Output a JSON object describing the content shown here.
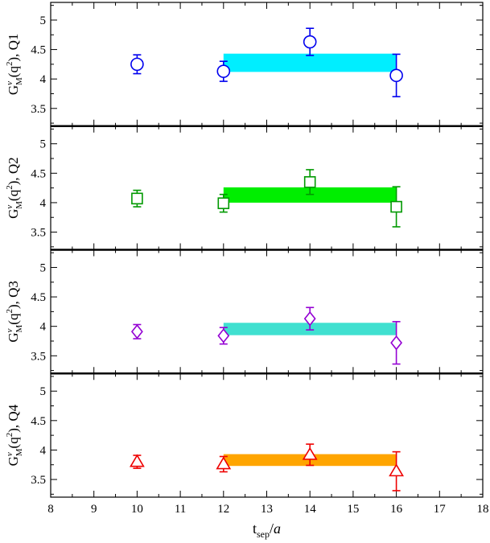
{
  "chart_data": {
    "type": "scatter",
    "x_axis": {
      "label_main": "t",
      "label_sub": "sep",
      "label_tail": "/a",
      "range": [
        8,
        18
      ],
      "ticks": [
        8,
        9,
        10,
        11,
        12,
        13,
        14,
        15,
        16,
        17,
        18
      ]
    },
    "y_range": [
      3.2,
      5.3
    ],
    "y_ticks": [
      3.5,
      4,
      4.5,
      5
    ],
    "y_tick_labels": [
      "3.5",
      "4",
      "4.5",
      "5"
    ],
    "panels": [
      {
        "ylabel": {
          "g": "G",
          "sup": "v",
          "sub": "M",
          "mid": "(q",
          "sq": "2",
          "tail": "), Q1"
        },
        "marker": "circle",
        "color": "#0000ee",
        "band": {
          "x": [
            12,
            16
          ],
          "y": [
            4.12,
            4.43
          ],
          "color": "#00eeff"
        },
        "points": [
          {
            "x": 10,
            "y": 4.25,
            "err": 0.16
          },
          {
            "x": 12,
            "y": 4.13,
            "err": 0.17
          },
          {
            "x": 14,
            "y": 4.63,
            "err": 0.23
          },
          {
            "x": 16,
            "y": 4.06,
            "err": 0.36
          }
        ]
      },
      {
        "ylabel": {
          "g": "G",
          "sup": "v",
          "sub": "M",
          "mid": "(q",
          "sq": "2",
          "tail": "), Q2"
        },
        "marker": "square",
        "color": "#009900",
        "band": {
          "x": [
            12,
            16
          ],
          "y": [
            4.0,
            4.26
          ],
          "color": "#00ee00"
        },
        "points": [
          {
            "x": 10,
            "y": 4.07,
            "err": 0.14
          },
          {
            "x": 12,
            "y": 3.99,
            "err": 0.15
          },
          {
            "x": 14,
            "y": 4.35,
            "err": 0.21
          },
          {
            "x": 16,
            "y": 3.93,
            "err": 0.34
          }
        ]
      },
      {
        "ylabel": {
          "g": "G",
          "sup": "v",
          "sub": "M",
          "mid": "(q",
          "sq": "2",
          "tail": "), Q3"
        },
        "marker": "diamond",
        "color": "#9400d3",
        "band": {
          "x": [
            12,
            16
          ],
          "y": [
            3.85,
            4.06
          ],
          "color": "#40e0d0"
        },
        "points": [
          {
            "x": 10,
            "y": 3.91,
            "err": 0.12
          },
          {
            "x": 12,
            "y": 3.84,
            "err": 0.14
          },
          {
            "x": 14,
            "y": 4.13,
            "err": 0.19
          },
          {
            "x": 16,
            "y": 3.72,
            "err": 0.36
          }
        ]
      },
      {
        "ylabel": {
          "g": "G",
          "sup": "v",
          "sub": "M",
          "mid": "(q",
          "sq": "2",
          "tail": "), Q4"
        },
        "marker": "triangle",
        "color": "#ee0000",
        "band": {
          "x": [
            12,
            16
          ],
          "y": [
            3.73,
            3.93
          ],
          "color": "#ffa500"
        },
        "points": [
          {
            "x": 10,
            "y": 3.8,
            "err": 0.11
          },
          {
            "x": 12,
            "y": 3.76,
            "err": 0.13
          },
          {
            "x": 14,
            "y": 3.92,
            "err": 0.18
          },
          {
            "x": 16,
            "y": 3.64,
            "err": 0.33
          }
        ]
      }
    ]
  }
}
